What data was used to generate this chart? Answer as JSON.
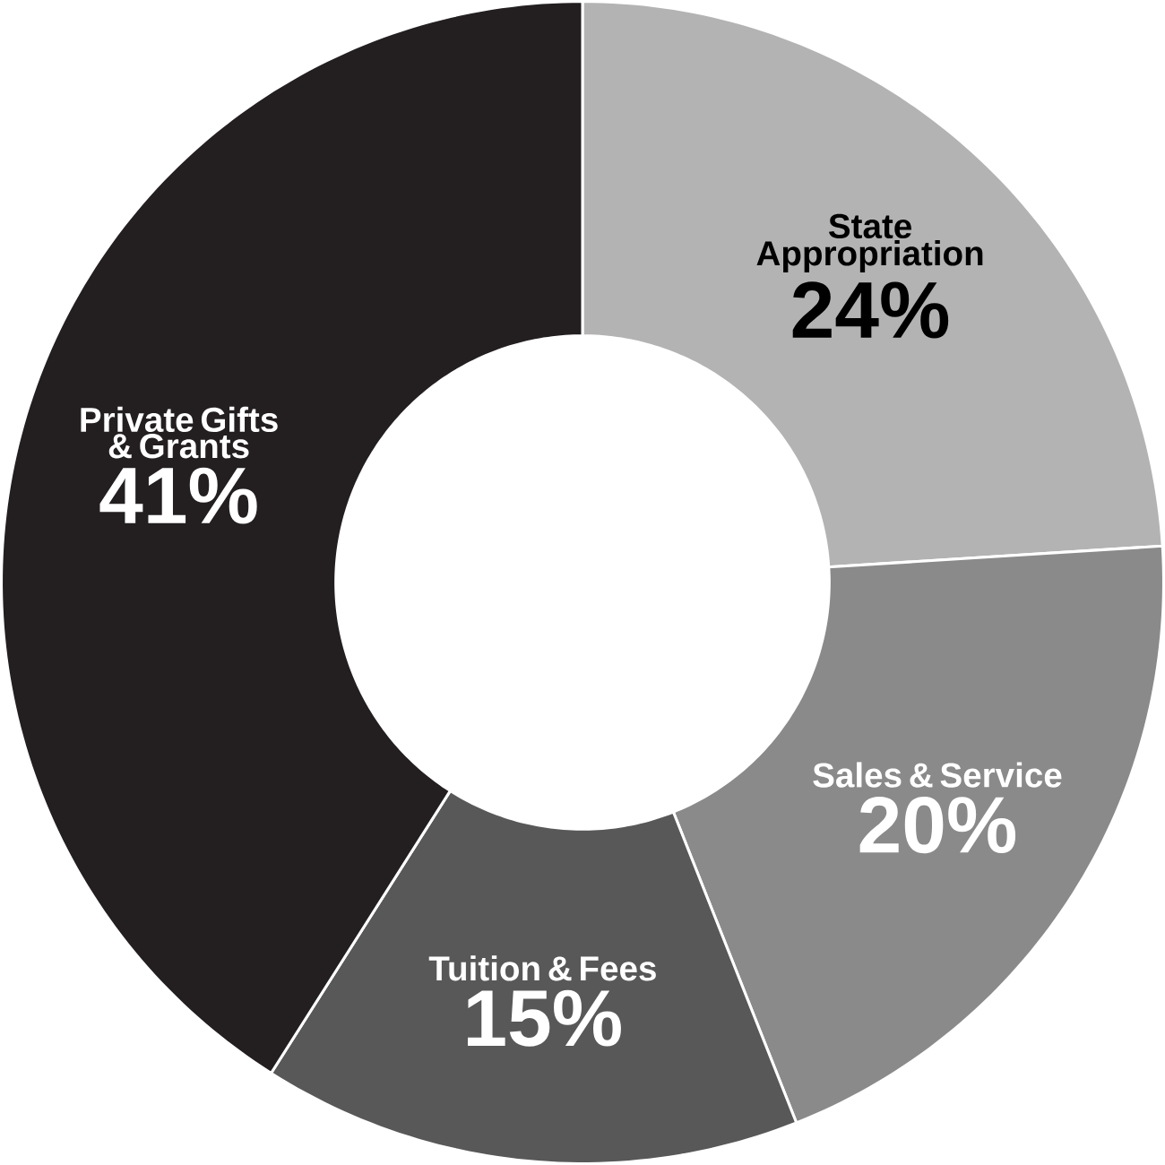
{
  "chart_data": {
    "type": "donut",
    "categories": [
      "State Appropriation",
      "Sales & Service",
      "Tuition & Fees",
      "Private Gifts & Grants"
    ],
    "values": [
      24,
      20,
      15,
      41
    ],
    "value_labels": [
      "24%",
      "20%",
      "15%",
      "41%"
    ],
    "colors": [
      "#b3b3b3",
      "#8a8a8a",
      "#585858",
      "#231f20"
    ]
  }
}
